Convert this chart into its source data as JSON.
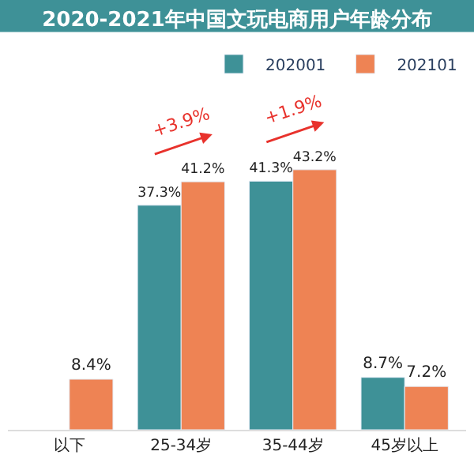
{
  "chart_data": {
    "type": "bar",
    "title": "2020-2021年中国文玩电商用户年龄分布",
    "categories": [
      "以下",
      "25-34岁",
      "35-44岁",
      "45岁以上"
    ],
    "series": [
      {
        "name": "202001",
        "color": "#3e9197",
        "values": [
          null,
          37.3,
          41.3,
          8.7
        ],
        "value_labels": [
          null,
          "37.3%",
          "41.3%",
          "8.7%"
        ]
      },
      {
        "name": "202101",
        "color": "#ee8354",
        "values": [
          8.4,
          41.2,
          43.2,
          7.2
        ],
        "value_labels": [
          "8.4%",
          "41.2%",
          "43.2%",
          "7.2%"
        ]
      }
    ],
    "annotations": [
      {
        "text": "+3.9%",
        "x": "25-34岁",
        "y": 41.2
      },
      {
        "text": "+1.9%",
        "x": "35-44岁",
        "y": 43.2
      }
    ],
    "legend": "top right"
  }
}
